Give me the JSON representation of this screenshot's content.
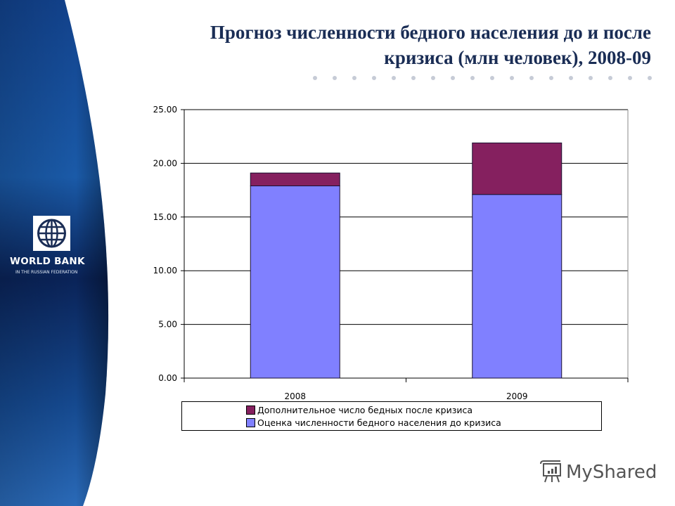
{
  "slide": {
    "title_line1": "Прогноз численности бедного населения до и после",
    "title_line2": "кризиса (млн человек), 2008-09"
  },
  "logo": {
    "name": "WORLD BANK",
    "subtitle": "IN THE RUSSIAN FEDERATION",
    "icon": "globe-icon"
  },
  "watermark": {
    "text": "MyShared",
    "icon": "presentation-board-icon"
  },
  "colors": {
    "sidebar_dark": "#0a2358",
    "sidebar_light": "#1a5aa8",
    "title": "#1a2d55",
    "series_before": "#8080ff",
    "series_additional": "#85205f",
    "dots": "#c6cbd6"
  },
  "chart_data": {
    "type": "bar",
    "stacked": true,
    "title": "Прогноз численности бедного населения до и после кризиса (млн человек), 2008-09",
    "xlabel": "",
    "ylabel": "",
    "categories": [
      "2008",
      "2009"
    ],
    "series": [
      {
        "name": "Оценка численности бедного населения до кризиса",
        "color": "#8080ff",
        "values": [
          17.9,
          17.1
        ]
      },
      {
        "name": "Дополнительное число бедных после кризиса",
        "color": "#85205f",
        "values": [
          1.2,
          4.8
        ]
      }
    ],
    "ylim": [
      0,
      25
    ],
    "yticks": [
      "0.00",
      "5.00",
      "10.00",
      "15.00",
      "20.00",
      "25.00"
    ],
    "grid": true,
    "legend_position": "bottom",
    "legend": [
      {
        "label": "Дополнительное число бедных после кризиса",
        "color": "#85205f"
      },
      {
        "label": "Оценка численности бедного населения до кризиса",
        "color": "#8080ff"
      }
    ]
  }
}
